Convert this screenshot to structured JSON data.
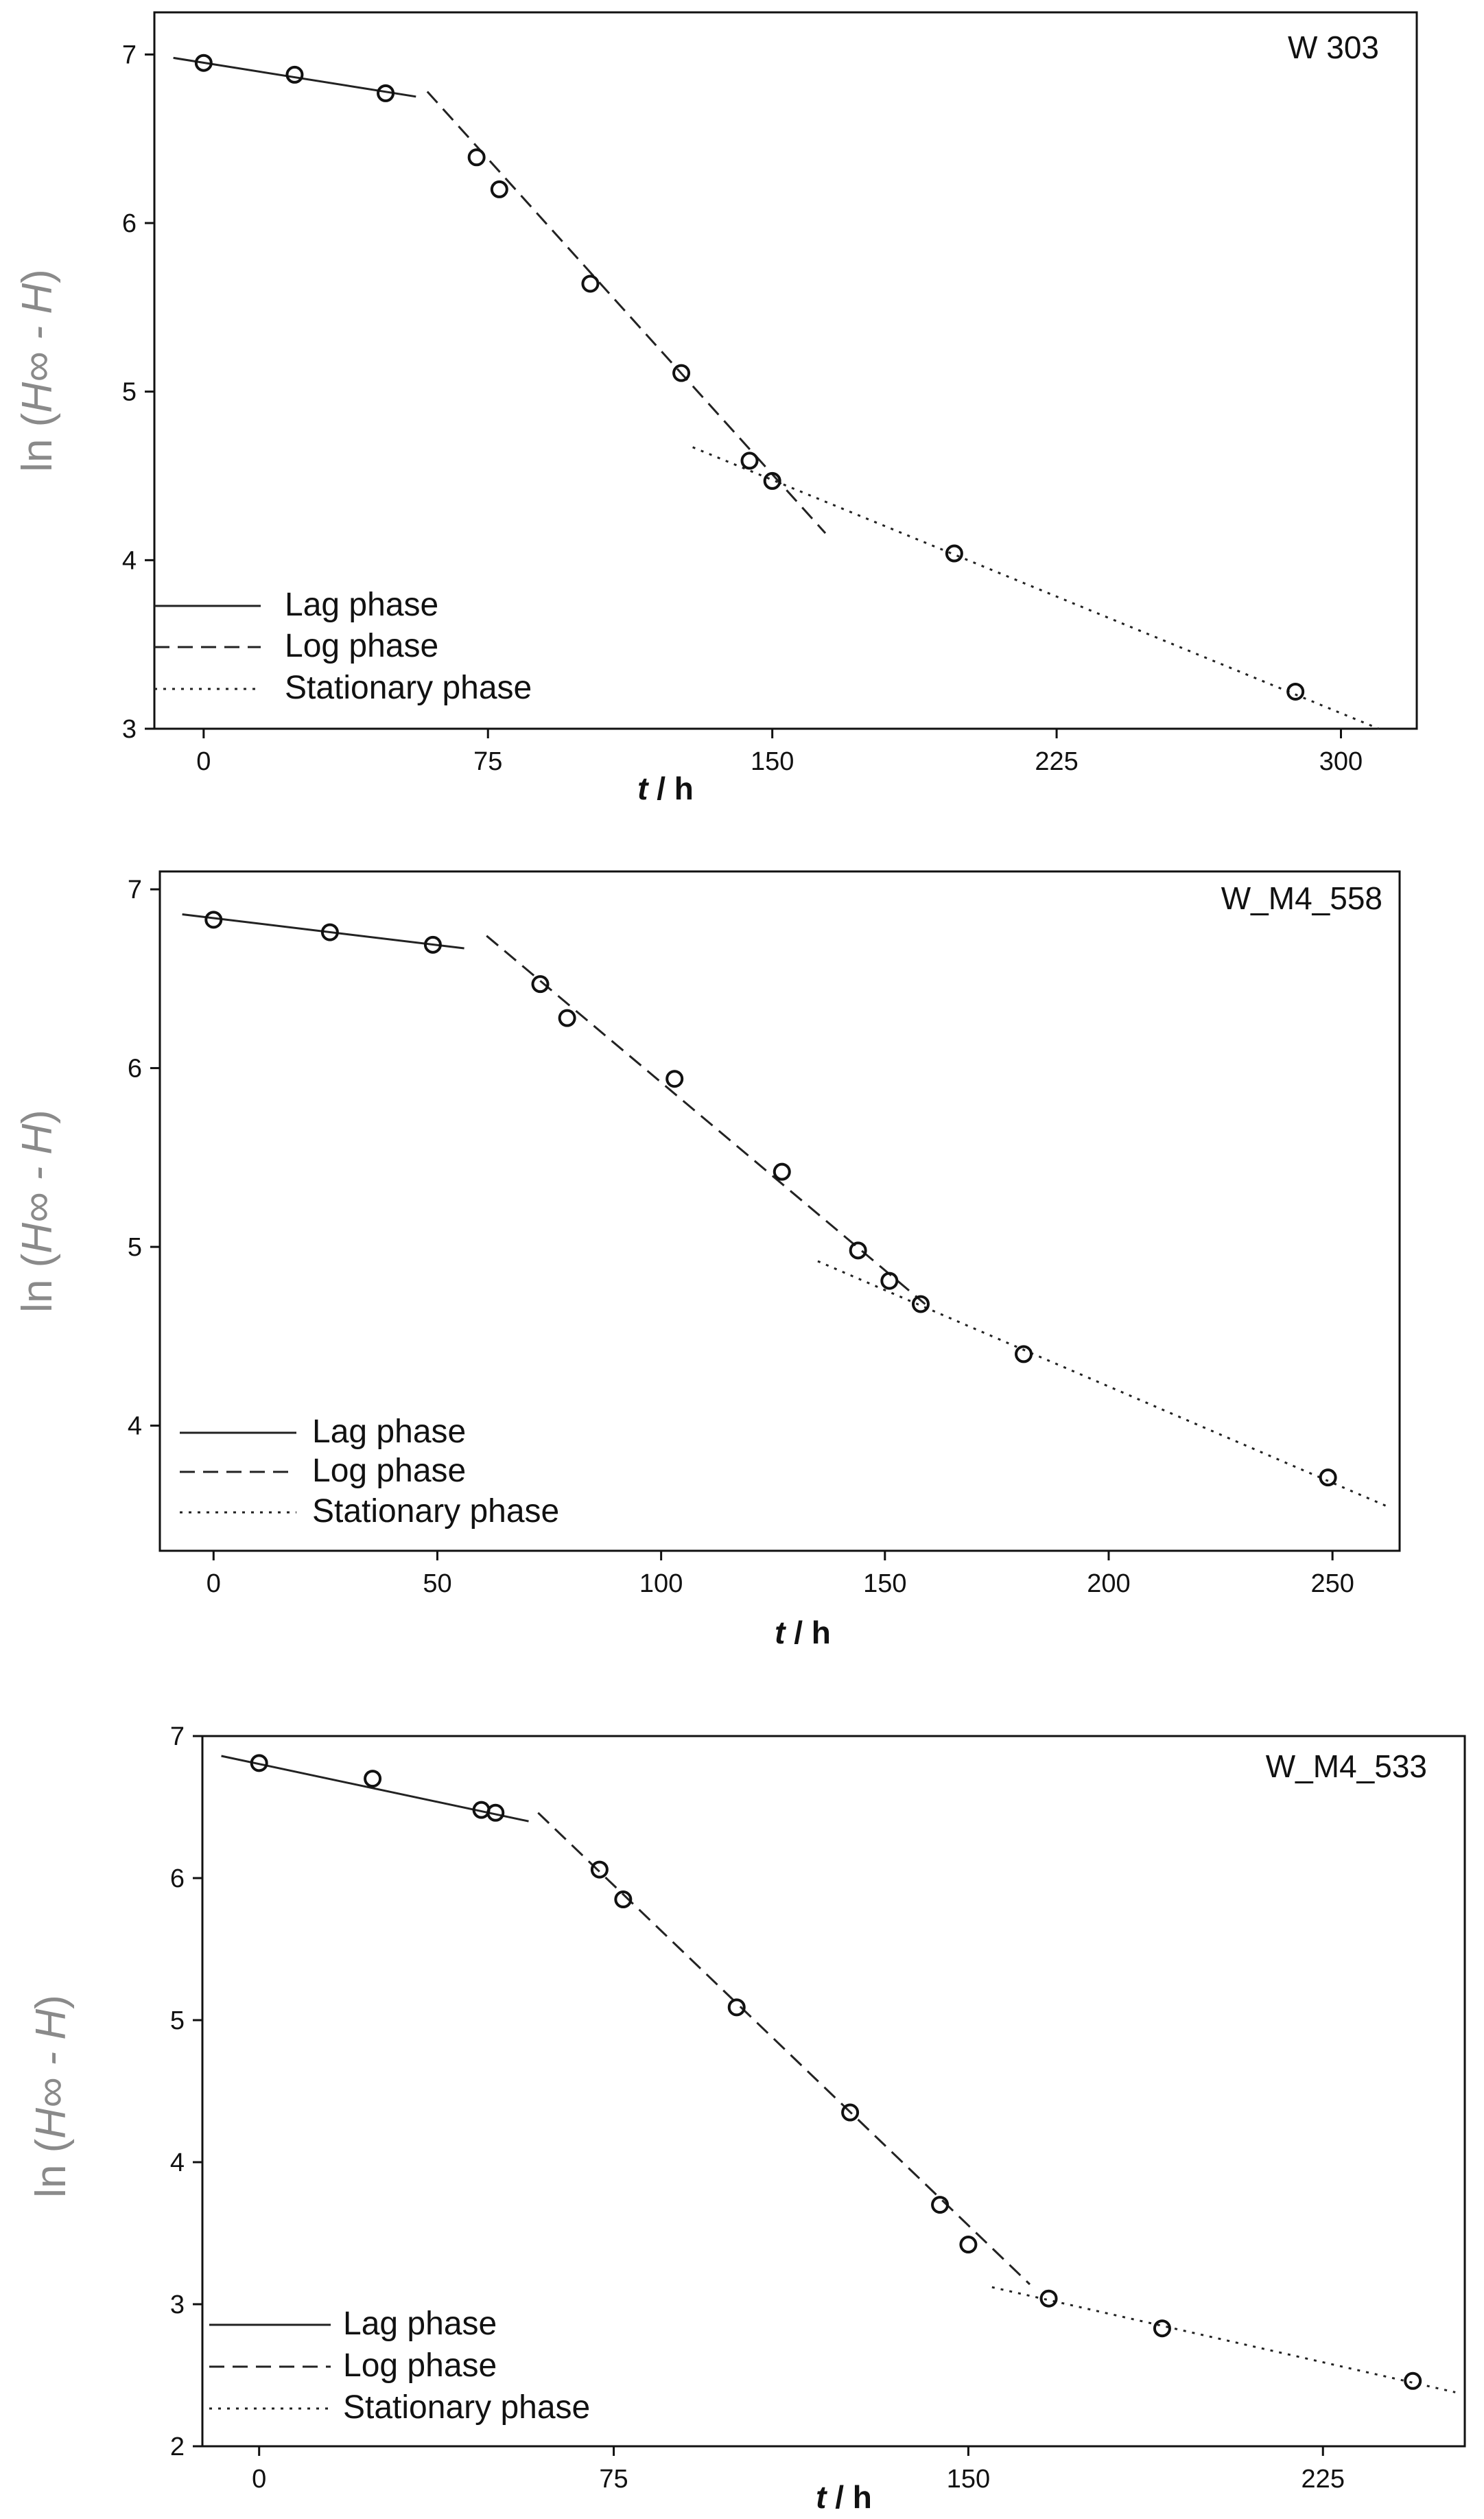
{
  "chart_data": [
    {
      "type": "scatter",
      "title": "W 303",
      "xlabel_italic": "t",
      "xlabel_rest": " / h",
      "ylabel_prefix": "ln (",
      "ylabel_italic": "H∞ - H",
      "ylabel_suffix": ")",
      "xlim": [
        -13,
        320
      ],
      "ylim": [
        3,
        7.25
      ],
      "xticks": [
        0,
        75,
        150,
        225,
        300
      ],
      "yticks": [
        3,
        4,
        5,
        6,
        7
      ],
      "legend_position": "bottom-left",
      "series": [
        {
          "kind": "points",
          "x": [
            0,
            24,
            48,
            72,
            78,
            102,
            126,
            144,
            150,
            198,
            288
          ],
          "y": [
            6.95,
            6.88,
            6.77,
            6.39,
            6.2,
            5.64,
            5.11,
            4.59,
            4.47,
            4.04,
            3.22
          ]
        },
        {
          "kind": "fit",
          "name": "Lag phase",
          "style": "solid",
          "x": [
            -8,
            56
          ],
          "y": [
            6.98,
            6.75
          ]
        },
        {
          "kind": "fit",
          "name": "Log phase",
          "style": "dashed",
          "x": [
            59,
            164
          ],
          "y": [
            6.78,
            4.16
          ]
        },
        {
          "kind": "fit",
          "name": "Stationary phase",
          "style": "dotted",
          "x": [
            129,
            310
          ],
          "y": [
            4.67,
            3.0
          ]
        }
      ]
    },
    {
      "type": "scatter",
      "title": "W_M4_558",
      "xlabel_italic": "t",
      "xlabel_rest": " / h",
      "ylabel_prefix": "ln (",
      "ylabel_italic": "H∞ - H",
      "ylabel_suffix": ")",
      "xlim": [
        -12,
        265
      ],
      "ylim": [
        3.3,
        7.1
      ],
      "xticks": [
        0,
        50,
        100,
        150,
        200,
        250
      ],
      "yticks": [
        4,
        5,
        6,
        7
      ],
      "legend_position": "bottom-left",
      "series": [
        {
          "kind": "points",
          "x": [
            0,
            26,
            49,
            73,
            79,
            103,
            127,
            144,
            151,
            158,
            181,
            249
          ],
          "y": [
            6.83,
            6.76,
            6.69,
            6.47,
            6.28,
            5.94,
            5.42,
            4.98,
            4.81,
            4.68,
            4.4,
            3.71
          ]
        },
        {
          "kind": "fit",
          "name": "Lag phase",
          "style": "solid",
          "x": [
            -7,
            56
          ],
          "y": [
            6.86,
            6.67
          ]
        },
        {
          "kind": "fit",
          "name": "Log phase",
          "style": "dashed",
          "x": [
            61,
            159
          ],
          "y": [
            6.74,
            4.68
          ]
        },
        {
          "kind": "fit",
          "name": "Stationary phase",
          "style": "dotted",
          "x": [
            135,
            263
          ],
          "y": [
            4.92,
            3.54
          ]
        }
      ]
    },
    {
      "type": "scatter",
      "title": "W_M4_533",
      "xlabel_italic": "t",
      "xlabel_rest": " / h",
      "ylabel_prefix": "ln (",
      "ylabel_italic": "H∞ - H",
      "ylabel_suffix": ")",
      "xlim": [
        -12,
        255
      ],
      "ylim": [
        2,
        7
      ],
      "xticks": [
        0,
        75,
        150,
        225
      ],
      "yticks": [
        2,
        3,
        4,
        5,
        6,
        7
      ],
      "legend_position": "bottom-left",
      "series": [
        {
          "kind": "points",
          "x": [
            0,
            24,
            47,
            50,
            72,
            77,
            101,
            125,
            144,
            150,
            167,
            191,
            244
          ],
          "y": [
            6.81,
            6.7,
            6.48,
            6.46,
            6.06,
            5.85,
            5.09,
            4.35,
            3.7,
            3.42,
            3.04,
            2.83,
            2.46
          ]
        },
        {
          "kind": "fit",
          "name": "Lag phase",
          "style": "solid",
          "x": [
            -8,
            57
          ],
          "y": [
            6.86,
            6.4
          ]
        },
        {
          "kind": "fit",
          "name": "Log phase",
          "style": "dashed",
          "x": [
            59,
            163
          ],
          "y": [
            6.46,
            3.14
          ]
        },
        {
          "kind": "fit",
          "name": "Stationary phase",
          "style": "dotted",
          "x": [
            155,
            253
          ],
          "y": [
            3.12,
            2.38
          ]
        }
      ]
    }
  ]
}
